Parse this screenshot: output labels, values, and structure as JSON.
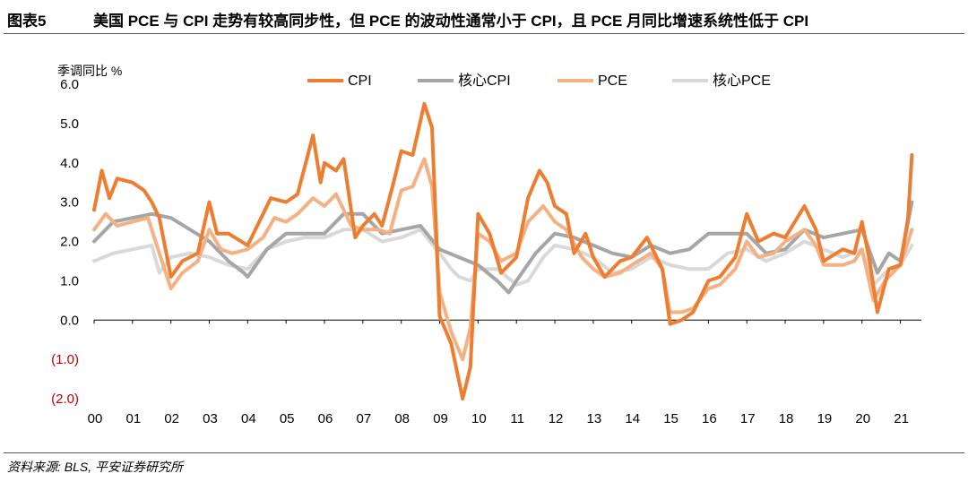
{
  "header": {
    "figure_number": "图表5",
    "title": "美国 PCE 与 CPI 走势有较高同步性，但 PCE 的波动性通常小于 CPI，且 PCE 月同比增速系统性低于 CPI"
  },
  "source": "资料来源: BLS, 平安证券研究所",
  "colors": {
    "cpi": "#ED7D31",
    "core_cpi": "#A6A6A6",
    "pce": "#F4B183",
    "core_pce": "#D9D9D9"
  },
  "chart_data": {
    "type": "line",
    "title": "",
    "ylabel": "季调同比 %",
    "xlabel": "",
    "ylim": [
      -2.0,
      6.0
    ],
    "yticks": [
      6.0,
      5.0,
      4.0,
      3.0,
      2.0,
      1.0,
      0.0,
      -1.0,
      -2.0
    ],
    "ytick_labels": [
      "6.0",
      "5.0",
      "4.0",
      "3.0",
      "2.0",
      "1.0",
      "0.0",
      "(1.0)",
      "(2.0)"
    ],
    "xlim": [
      2000,
      2021.5
    ],
    "xticks": [
      2000,
      2001,
      2002,
      2003,
      2004,
      2005,
      2006,
      2007,
      2008,
      2009,
      2010,
      2011,
      2012,
      2013,
      2014,
      2015,
      2016,
      2017,
      2018,
      2019,
      2020,
      2021
    ],
    "xtick_labels": [
      "00",
      "01",
      "02",
      "03",
      "04",
      "05",
      "06",
      "07",
      "08",
      "09",
      "10",
      "11",
      "12",
      "13",
      "14",
      "15",
      "16",
      "17",
      "18",
      "19",
      "20",
      "21"
    ],
    "legend_position": "top",
    "series": [
      {
        "key": "core_pce",
        "name": "核心PCE",
        "points": [
          [
            2000.0,
            1.5
          ],
          [
            2000.5,
            1.7
          ],
          [
            2001.0,
            1.8
          ],
          [
            2001.5,
            1.9
          ],
          [
            2001.7,
            1.2
          ],
          [
            2002.0,
            1.6
          ],
          [
            2002.5,
            1.7
          ],
          [
            2003.0,
            1.6
          ],
          [
            2003.5,
            1.4
          ],
          [
            2004.0,
            1.3
          ],
          [
            2004.5,
            1.8
          ],
          [
            2005.0,
            2.0
          ],
          [
            2005.5,
            2.1
          ],
          [
            2006.0,
            2.1
          ],
          [
            2006.5,
            2.3
          ],
          [
            2007.0,
            2.3
          ],
          [
            2007.5,
            2.0
          ],
          [
            2008.0,
            2.1
          ],
          [
            2008.5,
            2.3
          ],
          [
            2009.0,
            1.7
          ],
          [
            2009.3,
            1.3
          ],
          [
            2009.5,
            1.1
          ],
          [
            2009.8,
            1.0
          ],
          [
            2010.0,
            1.3
          ],
          [
            2010.5,
            1.3
          ],
          [
            2011.0,
            0.9
          ],
          [
            2011.3,
            1.0
          ],
          [
            2011.7,
            1.6
          ],
          [
            2012.0,
            1.9
          ],
          [
            2012.5,
            1.8
          ],
          [
            2013.0,
            1.6
          ],
          [
            2013.5,
            1.2
          ],
          [
            2014.0,
            1.3
          ],
          [
            2014.5,
            1.6
          ],
          [
            2015.0,
            1.4
          ],
          [
            2015.5,
            1.3
          ],
          [
            2016.0,
            1.3
          ],
          [
            2016.5,
            1.7
          ],
          [
            2017.0,
            1.8
          ],
          [
            2017.5,
            1.5
          ],
          [
            2018.0,
            1.7
          ],
          [
            2018.5,
            2.0
          ],
          [
            2019.0,
            1.8
          ],
          [
            2019.5,
            1.6
          ],
          [
            2020.0,
            1.8
          ],
          [
            2020.3,
            0.9
          ],
          [
            2020.6,
            1.2
          ],
          [
            2021.0,
            1.4
          ],
          [
            2021.3,
            1.9
          ]
        ]
      },
      {
        "key": "core_cpi",
        "name": "核心CPI",
        "points": [
          [
            2000.0,
            2.0
          ],
          [
            2000.5,
            2.5
          ],
          [
            2001.0,
            2.6
          ],
          [
            2001.5,
            2.7
          ],
          [
            2002.0,
            2.6
          ],
          [
            2002.5,
            2.3
          ],
          [
            2003.0,
            2.0
          ],
          [
            2003.5,
            1.5
          ],
          [
            2003.9,
            1.2
          ],
          [
            2004.0,
            1.1
          ],
          [
            2004.5,
            1.8
          ],
          [
            2005.0,
            2.2
          ],
          [
            2005.5,
            2.2
          ],
          [
            2006.0,
            2.2
          ],
          [
            2006.5,
            2.7
          ],
          [
            2007.0,
            2.7
          ],
          [
            2007.5,
            2.2
          ],
          [
            2008.0,
            2.3
          ],
          [
            2008.5,
            2.4
          ],
          [
            2009.0,
            1.8
          ],
          [
            2009.5,
            1.6
          ],
          [
            2010.0,
            1.4
          ],
          [
            2010.5,
            1.0
          ],
          [
            2010.8,
            0.7
          ],
          [
            2011.0,
            1.0
          ],
          [
            2011.5,
            1.7
          ],
          [
            2012.0,
            2.2
          ],
          [
            2012.5,
            2.1
          ],
          [
            2013.0,
            1.9
          ],
          [
            2013.5,
            1.7
          ],
          [
            2014.0,
            1.6
          ],
          [
            2014.5,
            1.9
          ],
          [
            2015.0,
            1.7
          ],
          [
            2015.5,
            1.8
          ],
          [
            2016.0,
            2.2
          ],
          [
            2016.5,
            2.2
          ],
          [
            2017.0,
            2.2
          ],
          [
            2017.5,
            1.7
          ],
          [
            2018.0,
            1.8
          ],
          [
            2018.5,
            2.3
          ],
          [
            2019.0,
            2.1
          ],
          [
            2019.5,
            2.2
          ],
          [
            2020.0,
            2.3
          ],
          [
            2020.4,
            1.2
          ],
          [
            2020.7,
            1.7
          ],
          [
            2021.0,
            1.5
          ],
          [
            2021.3,
            3.0
          ]
        ]
      },
      {
        "key": "pce",
        "name": "PCE",
        "points": [
          [
            2000.0,
            2.3
          ],
          [
            2000.3,
            2.7
          ],
          [
            2000.6,
            2.4
          ],
          [
            2001.0,
            2.5
          ],
          [
            2001.4,
            2.6
          ],
          [
            2001.7,
            1.7
          ],
          [
            2002.0,
            0.8
          ],
          [
            2002.3,
            1.2
          ],
          [
            2002.7,
            1.5
          ],
          [
            2003.0,
            2.3
          ],
          [
            2003.3,
            1.8
          ],
          [
            2003.6,
            1.7
          ],
          [
            2004.0,
            1.8
          ],
          [
            2004.4,
            2.1
          ],
          [
            2004.7,
            2.6
          ],
          [
            2005.0,
            2.5
          ],
          [
            2005.3,
            2.7
          ],
          [
            2005.7,
            3.1
          ],
          [
            2006.0,
            2.9
          ],
          [
            2006.3,
            3.2
          ],
          [
            2006.7,
            2.4
          ],
          [
            2007.0,
            2.3
          ],
          [
            2007.4,
            2.3
          ],
          [
            2007.7,
            2.2
          ],
          [
            2008.0,
            3.3
          ],
          [
            2008.3,
            3.4
          ],
          [
            2008.6,
            4.1
          ],
          [
            2008.8,
            3.4
          ],
          [
            2009.0,
            0.7
          ],
          [
            2009.3,
            -0.3
          ],
          [
            2009.6,
            -1.0
          ],
          [
            2009.8,
            -0.2
          ],
          [
            2010.0,
            2.2
          ],
          [
            2010.3,
            2.0
          ],
          [
            2010.6,
            1.5
          ],
          [
            2011.0,
            1.7
          ],
          [
            2011.3,
            2.5
          ],
          [
            2011.7,
            2.9
          ],
          [
            2012.0,
            2.5
          ],
          [
            2012.3,
            2.3
          ],
          [
            2012.7,
            1.6
          ],
          [
            2013.0,
            1.3
          ],
          [
            2013.3,
            1.1
          ],
          [
            2013.7,
            1.2
          ],
          [
            2014.0,
            1.4
          ],
          [
            2014.5,
            1.7
          ],
          [
            2014.8,
            1.3
          ],
          [
            2015.0,
            0.2
          ],
          [
            2015.3,
            0.2
          ],
          [
            2015.6,
            0.3
          ],
          [
            2016.0,
            0.8
          ],
          [
            2016.3,
            0.9
          ],
          [
            2016.7,
            1.3
          ],
          [
            2017.0,
            2.0
          ],
          [
            2017.3,
            1.6
          ],
          [
            2017.7,
            1.7
          ],
          [
            2018.0,
            2.0
          ],
          [
            2018.5,
            2.3
          ],
          [
            2018.8,
            1.9
          ],
          [
            2019.0,
            1.4
          ],
          [
            2019.5,
            1.4
          ],
          [
            2019.8,
            1.5
          ],
          [
            2020.0,
            1.8
          ],
          [
            2020.3,
            0.5
          ],
          [
            2020.6,
            1.0
          ],
          [
            2021.0,
            1.4
          ],
          [
            2021.3,
            2.3
          ]
        ]
      },
      {
        "key": "cpi",
        "name": "CPI",
        "points": [
          [
            2000.0,
            2.8
          ],
          [
            2000.2,
            3.8
          ],
          [
            2000.4,
            3.1
          ],
          [
            2000.6,
            3.6
          ],
          [
            2001.0,
            3.5
          ],
          [
            2001.3,
            3.3
          ],
          [
            2001.5,
            3.0
          ],
          [
            2001.7,
            2.6
          ],
          [
            2002.0,
            1.1
          ],
          [
            2002.3,
            1.5
          ],
          [
            2002.7,
            1.7
          ],
          [
            2003.0,
            3.0
          ],
          [
            2003.2,
            2.2
          ],
          [
            2003.5,
            2.2
          ],
          [
            2004.0,
            1.9
          ],
          [
            2004.3,
            2.5
          ],
          [
            2004.6,
            3.1
          ],
          [
            2005.0,
            3.0
          ],
          [
            2005.3,
            3.2
          ],
          [
            2005.7,
            4.7
          ],
          [
            2005.9,
            3.5
          ],
          [
            2006.0,
            4.0
          ],
          [
            2006.3,
            3.8
          ],
          [
            2006.5,
            4.1
          ],
          [
            2006.8,
            2.1
          ],
          [
            2007.0,
            2.4
          ],
          [
            2007.3,
            2.7
          ],
          [
            2007.5,
            2.4
          ],
          [
            2007.8,
            3.5
          ],
          [
            2008.0,
            4.3
          ],
          [
            2008.3,
            4.2
          ],
          [
            2008.6,
            5.5
          ],
          [
            2008.8,
            4.9
          ],
          [
            2009.0,
            0.1
          ],
          [
            2009.3,
            -0.6
          ],
          [
            2009.6,
            -2.0
          ],
          [
            2009.8,
            -1.2
          ],
          [
            2010.0,
            2.7
          ],
          [
            2010.3,
            2.2
          ],
          [
            2010.6,
            1.2
          ],
          [
            2011.0,
            1.6
          ],
          [
            2011.3,
            3.1
          ],
          [
            2011.6,
            3.8
          ],
          [
            2011.8,
            3.5
          ],
          [
            2012.0,
            2.9
          ],
          [
            2012.3,
            2.7
          ],
          [
            2012.5,
            1.7
          ],
          [
            2012.8,
            2.2
          ],
          [
            2013.0,
            1.6
          ],
          [
            2013.3,
            1.1
          ],
          [
            2013.7,
            1.5
          ],
          [
            2014.0,
            1.6
          ],
          [
            2014.4,
            2.1
          ],
          [
            2014.8,
            1.3
          ],
          [
            2015.0,
            -0.1
          ],
          [
            2015.3,
            0.0
          ],
          [
            2015.6,
            0.2
          ],
          [
            2016.0,
            1.0
          ],
          [
            2016.3,
            1.1
          ],
          [
            2016.7,
            1.6
          ],
          [
            2017.0,
            2.7
          ],
          [
            2017.3,
            2.0
          ],
          [
            2017.7,
            2.2
          ],
          [
            2018.0,
            2.1
          ],
          [
            2018.5,
            2.9
          ],
          [
            2018.8,
            2.3
          ],
          [
            2019.0,
            1.5
          ],
          [
            2019.5,
            1.8
          ],
          [
            2019.8,
            1.7
          ],
          [
            2020.0,
            2.5
          ],
          [
            2020.2,
            1.5
          ],
          [
            2020.4,
            0.2
          ],
          [
            2020.7,
            1.3
          ],
          [
            2021.0,
            1.4
          ],
          [
            2021.2,
            2.6
          ],
          [
            2021.3,
            4.2
          ]
        ]
      }
    ]
  }
}
